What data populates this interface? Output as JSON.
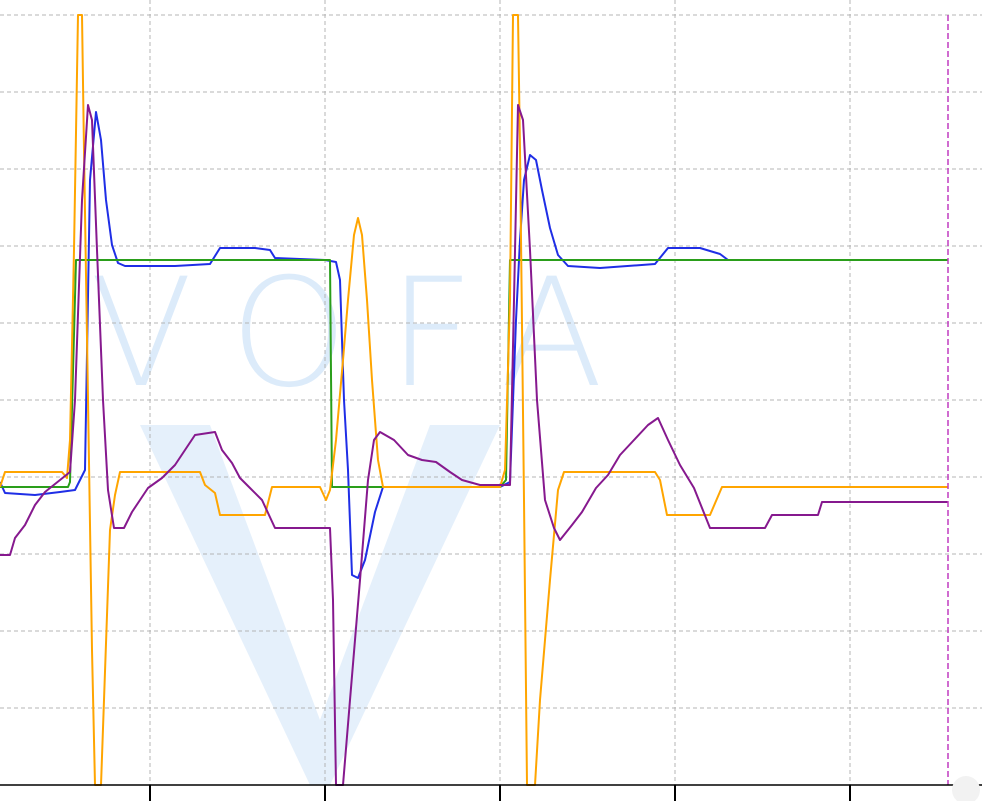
{
  "app": {
    "watermark_text": "VOFA",
    "watermark_color": "#dcebfa",
    "background": "#ffffff",
    "grid_color": "#b4b4b4",
    "cursor_color": "#c03cc0"
  },
  "chart_data": {
    "type": "line",
    "title": "",
    "xlabel": "",
    "ylabel": "",
    "xlim": [
      0,
      982
    ],
    "ylim": [
      0,
      785
    ],
    "grid": true,
    "legend": "none",
    "x_ticks": [
      150,
      325,
      500,
      675,
      850
    ],
    "y_gridlines": [
      15,
      92,
      169,
      246,
      323,
      400,
      477,
      554,
      631,
      708
    ],
    "x_gridlines": [
      150,
      325,
      500,
      675,
      850
    ],
    "cursor_x": 948,
    "series": [
      {
        "color": "#1f2ee6",
        "points": [
          [
            0,
            482
          ],
          [
            5,
            493
          ],
          [
            35,
            495
          ],
          [
            60,
            492
          ],
          [
            75,
            490
          ],
          [
            85,
            470
          ],
          [
            90,
            180
          ],
          [
            96,
            112
          ],
          [
            101,
            140
          ],
          [
            106,
            200
          ],
          [
            112,
            245
          ],
          [
            118,
            263
          ],
          [
            125,
            266
          ],
          [
            175,
            266
          ],
          [
            210,
            264
          ],
          [
            220,
            248
          ],
          [
            255,
            248
          ],
          [
            270,
            250
          ],
          [
            275,
            258
          ],
          [
            325,
            260
          ],
          [
            336,
            262
          ],
          [
            340,
            280
          ],
          [
            344,
            400
          ],
          [
            348,
            470
          ],
          [
            352,
            575
          ],
          [
            358,
            578
          ],
          [
            365,
            560
          ],
          [
            375,
            512
          ],
          [
            383,
            487
          ],
          [
            500,
            487
          ],
          [
            510,
            482
          ],
          [
            516,
            320
          ],
          [
            520,
            240
          ],
          [
            524,
            180
          ],
          [
            530,
            155
          ],
          [
            536,
            160
          ],
          [
            542,
            190
          ],
          [
            550,
            228
          ],
          [
            558,
            255
          ],
          [
            568,
            266
          ],
          [
            600,
            268
          ],
          [
            655,
            264
          ],
          [
            668,
            248
          ],
          [
            700,
            248
          ],
          [
            720,
            254
          ],
          [
            728,
            260
          ],
          [
            855,
            260
          ]
        ]
      },
      {
        "color": "#2a9e1a",
        "points": [
          [
            0,
            487
          ],
          [
            68,
            487
          ],
          [
            70,
            482
          ],
          [
            76,
            260
          ],
          [
            330,
            260
          ],
          [
            332,
            487
          ],
          [
            500,
            487
          ],
          [
            506,
            480
          ],
          [
            510,
            260
          ],
          [
            948,
            260
          ]
        ]
      },
      {
        "color": "#ffa500",
        "points": [
          [
            0,
            487
          ],
          [
            5,
            472
          ],
          [
            62,
            472
          ],
          [
            67,
            478
          ],
          [
            70,
            440
          ],
          [
            74,
            250
          ],
          [
            78,
            15
          ],
          [
            82,
            15
          ],
          [
            84,
            150
          ],
          [
            88,
            400
          ],
          [
            92,
            650
          ],
          [
            95,
            785
          ],
          [
            101,
            785
          ],
          [
            104,
            700
          ],
          [
            110,
            530
          ],
          [
            115,
            495
          ],
          [
            120,
            472
          ],
          [
            200,
            472
          ],
          [
            205,
            485
          ],
          [
            215,
            493
          ],
          [
            220,
            515
          ],
          [
            265,
            515
          ],
          [
            272,
            487
          ],
          [
            320,
            487
          ],
          [
            326,
            500
          ],
          [
            330,
            490
          ],
          [
            336,
            440
          ],
          [
            343,
            360
          ],
          [
            348,
            300
          ],
          [
            354,
            235
          ],
          [
            358,
            218
          ],
          [
            362,
            235
          ],
          [
            367,
            300
          ],
          [
            372,
            380
          ],
          [
            378,
            460
          ],
          [
            383,
            487
          ],
          [
            500,
            487
          ],
          [
            505,
            470
          ],
          [
            510,
            300
          ],
          [
            513,
            15
          ],
          [
            518,
            15
          ],
          [
            520,
            150
          ],
          [
            524,
            500
          ],
          [
            527,
            785
          ],
          [
            535,
            785
          ],
          [
            540,
            700
          ],
          [
            550,
            580
          ],
          [
            558,
            490
          ],
          [
            564,
            472
          ],
          [
            655,
            472
          ],
          [
            660,
            480
          ],
          [
            667,
            515
          ],
          [
            710,
            515
          ],
          [
            722,
            487
          ],
          [
            948,
            487
          ]
        ]
      },
      {
        "color": "#86198e",
        "points": [
          [
            0,
            555
          ],
          [
            10,
            555
          ],
          [
            15,
            538
          ],
          [
            25,
            525
          ],
          [
            35,
            505
          ],
          [
            45,
            492
          ],
          [
            60,
            480
          ],
          [
            70,
            472
          ],
          [
            75,
            400
          ],
          [
            82,
            200
          ],
          [
            88,
            105
          ],
          [
            92,
            120
          ],
          [
            97,
            250
          ],
          [
            103,
            400
          ],
          [
            108,
            490
          ],
          [
            114,
            528
          ],
          [
            124,
            528
          ],
          [
            132,
            512
          ],
          [
            140,
            500
          ],
          [
            148,
            488
          ],
          [
            162,
            478
          ],
          [
            175,
            465
          ],
          [
            185,
            450
          ],
          [
            195,
            435
          ],
          [
            215,
            432
          ],
          [
            222,
            450
          ],
          [
            232,
            463
          ],
          [
            240,
            478
          ],
          [
            250,
            488
          ],
          [
            262,
            500
          ],
          [
            275,
            528
          ],
          [
            330,
            528
          ],
          [
            333,
            600
          ],
          [
            336,
            785
          ],
          [
            343,
            785
          ],
          [
            350,
            700
          ],
          [
            360,
            580
          ],
          [
            368,
            480
          ],
          [
            374,
            440
          ],
          [
            380,
            432
          ],
          [
            394,
            440
          ],
          [
            408,
            455
          ],
          [
            422,
            460
          ],
          [
            436,
            462
          ],
          [
            450,
            472
          ],
          [
            462,
            480
          ],
          [
            480,
            485
          ],
          [
            510,
            485
          ],
          [
            514,
            300
          ],
          [
            518,
            105
          ],
          [
            523,
            120
          ],
          [
            530,
            250
          ],
          [
            537,
            400
          ],
          [
            545,
            500
          ],
          [
            554,
            528
          ],
          [
            560,
            540
          ],
          [
            572,
            525
          ],
          [
            582,
            512
          ],
          [
            596,
            488
          ],
          [
            608,
            475
          ],
          [
            620,
            455
          ],
          [
            634,
            440
          ],
          [
            648,
            425
          ],
          [
            658,
            418
          ],
          [
            668,
            440
          ],
          [
            680,
            465
          ],
          [
            694,
            488
          ],
          [
            710,
            528
          ],
          [
            765,
            528
          ],
          [
            772,
            515
          ],
          [
            818,
            515
          ],
          [
            822,
            502
          ],
          [
            948,
            502
          ]
        ]
      }
    ]
  }
}
